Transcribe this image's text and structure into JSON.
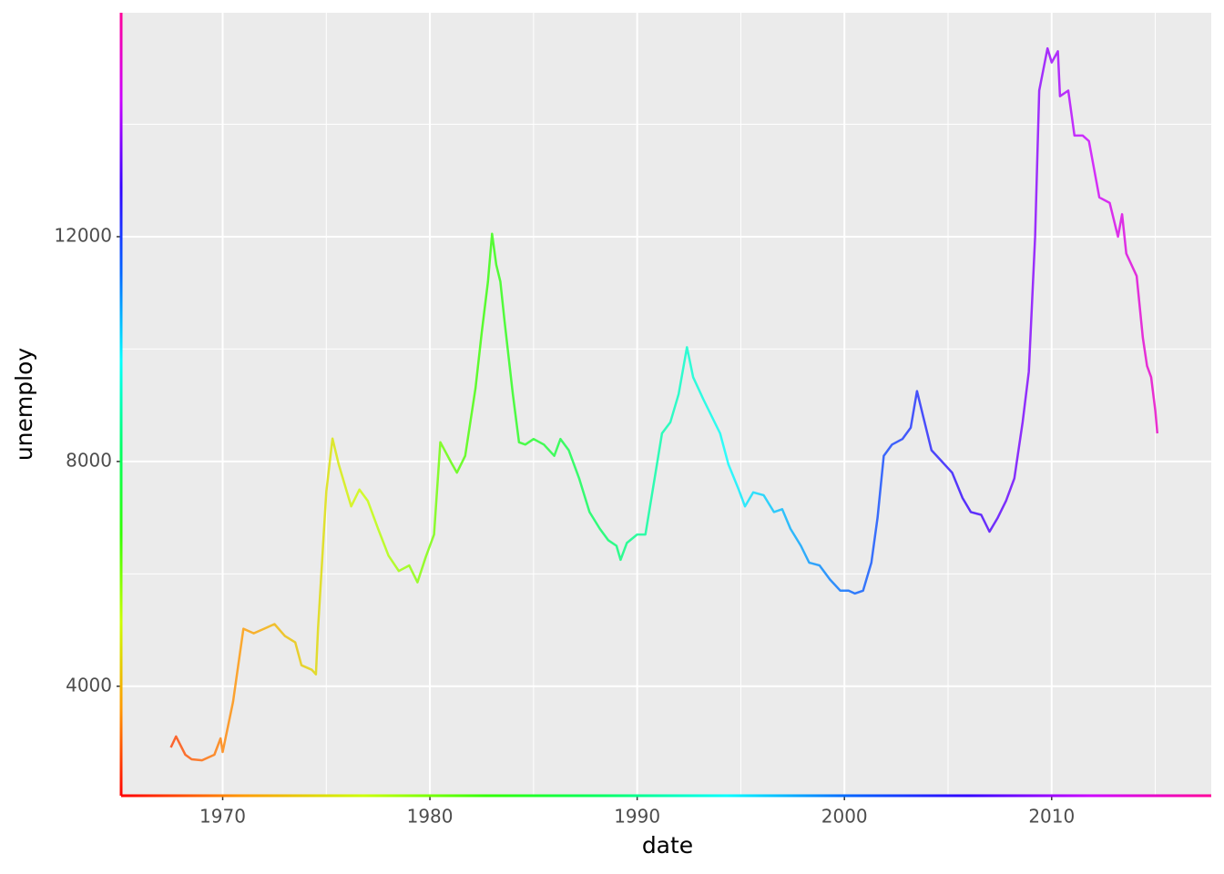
{
  "chart_data": {
    "type": "line",
    "x_label": "date",
    "y_label": "unemploy",
    "x": [
      1967.5,
      1967.75,
      1968.2,
      1968.5,
      1969.0,
      1969.6,
      1969.9,
      1970.0,
      1970.5,
      1971.0,
      1971.5,
      1972.0,
      1972.5,
      1973.0,
      1973.5,
      1973.8,
      1974.3,
      1974.5,
      1974.6,
      1975.0,
      1975.3,
      1975.6,
      1976.2,
      1976.6,
      1977.0,
      1977.5,
      1978.0,
      1978.5,
      1979.0,
      1979.4,
      1979.8,
      1980.2,
      1980.5,
      1981.0,
      1981.3,
      1981.7,
      1982.2,
      1982.5,
      1982.8,
      1983.0,
      1983.2,
      1983.4,
      1983.6,
      1984.0,
      1984.3,
      1984.6,
      1985.0,
      1985.5,
      1986.0,
      1986.3,
      1986.7,
      1987.2,
      1987.7,
      1988.2,
      1988.6,
      1989.0,
      1989.2,
      1989.5,
      1990.0,
      1990.4,
      1990.8,
      1991.2,
      1991.6,
      1992.0,
      1992.4,
      1992.7,
      1993.2,
      1993.6,
      1994.0,
      1994.4,
      1994.9,
      1995.2,
      1995.6,
      1996.1,
      1996.6,
      1997.0,
      1997.4,
      1997.9,
      1998.3,
      1998.8,
      1999.3,
      1999.8,
      2000.2,
      2000.5,
      2000.9,
      2001.3,
      2001.6,
      2001.9,
      2002.3,
      2002.8,
      2003.2,
      2003.5,
      2003.8,
      2004.2,
      2004.7,
      2005.2,
      2005.7,
      2006.1,
      2006.6,
      2007.0,
      2007.4,
      2007.8,
      2008.2,
      2008.6,
      2008.9,
      2009.2,
      2009.4,
      2009.8,
      2010.0,
      2010.3,
      2010.4,
      2010.8,
      2011.1,
      2011.5,
      2011.8,
      2012.3,
      2012.8,
      2013.2,
      2013.4,
      2013.6,
      2014.1,
      2014.4,
      2014.6,
      2014.8,
      2015.0,
      2015.1
    ],
    "values": [
      2911,
      3106,
      2781,
      2700,
      2683,
      2781,
      3073,
      2830,
      3723,
      5024,
      4943,
      5024,
      5106,
      4894,
      4781,
      4374,
      4293,
      4212,
      5024,
      7463,
      8407,
      7950,
      7200,
      7500,
      7300,
      6800,
      6325,
      6050,
      6150,
      5850,
      6300,
      6700,
      8343,
      8000,
      7800,
      8100,
      9300,
      10300,
      11200,
      12051,
      11500,
      11200,
      10500,
      9200,
      8342,
      8300,
      8400,
      8300,
      8100,
      8400,
      8200,
      7700,
      7100,
      6800,
      6600,
      6500,
      6250,
      6550,
      6700,
      6700,
      7600,
      8500,
      8700,
      9200,
      10033,
      9500,
      9100,
      8800,
      8500,
      7950,
      7500,
      7200,
      7450,
      7400,
      7100,
      7150,
      6800,
      6500,
      6200,
      6150,
      5900,
      5700,
      5700,
      5650,
      5700,
      6200,
      7000,
      8100,
      8300,
      8400,
      8600,
      9252,
      8800,
      8200,
      8000,
      7800,
      7350,
      7100,
      7050,
      6750,
      7000,
      7300,
      7700,
      8700,
      9600,
      12000,
      14600,
      15352,
      15100,
      15300,
      14500,
      14600,
      13800,
      13800,
      13700,
      12700,
      12600,
      12000,
      12400,
      11700,
      11300,
      10200,
      9700,
      9500,
      8900,
      8500
    ],
    "xlim": [
      1965.1,
      2017.7
    ],
    "ylim": [
      2052,
      15985
    ],
    "xticks": [
      1970,
      1980,
      1990,
      2000,
      2010
    ],
    "yticks": [
      4000,
      8000,
      12000
    ],
    "x_minor_grid": [
      1975,
      1985,
      1995,
      2005,
      2015
    ],
    "y_minor_grid": [
      6000,
      10000,
      14000
    ],
    "grid": true,
    "gradient_colors": [
      "#ff0000",
      "#ff9900",
      "#ccff00",
      "#33ff00",
      "#00ff66",
      "#00ffff",
      "#0066ff",
      "#3300ff",
      "#cc00ff",
      "#ff0099"
    ]
  }
}
